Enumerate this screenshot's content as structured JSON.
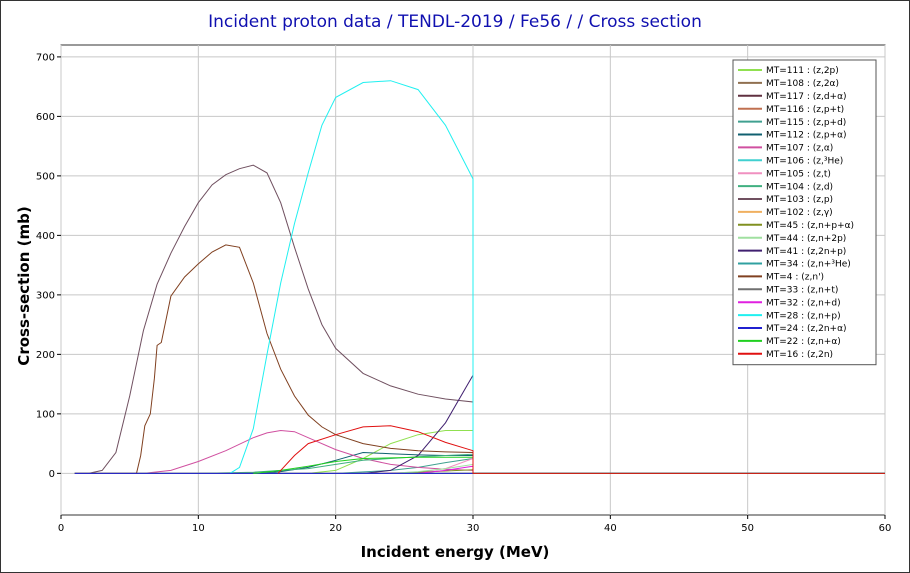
{
  "chart_data": {
    "type": "line",
    "title": "Incident proton data / TENDL-2019 / Fe56 / / Cross section",
    "xlabel": "Incident energy (MeV)",
    "ylabel": "Cross-section (mb)",
    "xlim": [
      0,
      60
    ],
    "ylim": [
      -70,
      720
    ],
    "xticks": [
      0,
      10,
      20,
      30,
      40,
      50,
      60
    ],
    "yticks": [
      0,
      100,
      200,
      300,
      400,
      500,
      600,
      700
    ],
    "grid": true,
    "legend_position": "top-right",
    "series": [
      {
        "name": "MT=111 : (z,2p)",
        "color": "#90e050",
        "x": [
          18,
          20,
          22,
          24,
          26,
          28,
          30,
          30,
          60
        ],
        "y": [
          0,
          5,
          25,
          50,
          65,
          72,
          72,
          0,
          0
        ]
      },
      {
        "name": "MT=108 : (z,2α)",
        "color": "#907050",
        "x": [
          1,
          30,
          30,
          60
        ],
        "y": [
          0,
          0,
          0,
          0
        ]
      },
      {
        "name": "MT=117 : (z,d+α)",
        "color": "#603040",
        "x": [
          1,
          30,
          30,
          60
        ],
        "y": [
          0,
          0,
          0,
          0
        ]
      },
      {
        "name": "MT=116 : (z,p+t)",
        "color": "#c07050",
        "x": [
          1,
          30,
          30,
          60
        ],
        "y": [
          0,
          0,
          0,
          0
        ]
      },
      {
        "name": "MT=115 : (z,p+d)",
        "color": "#40a090",
        "x": [
          20,
          24,
          26,
          28,
          30,
          30,
          60
        ],
        "y": [
          0,
          5,
          10,
          18,
          25,
          0,
          0
        ]
      },
      {
        "name": "MT=112 : (z,p+α)",
        "color": "#106070",
        "x": [
          14,
          16,
          18,
          20,
          22,
          24,
          26,
          28,
          30,
          30,
          60
        ],
        "y": [
          0,
          3,
          10,
          22,
          35,
          33,
          31,
          30,
          30,
          0,
          0
        ]
      },
      {
        "name": "MT=107 : (z,α)",
        "color": "#d050a0",
        "x": [
          1,
          6,
          8,
          10,
          12,
          14,
          15,
          16,
          17,
          18,
          20,
          22,
          24,
          26,
          28,
          30,
          30,
          60
        ],
        "y": [
          0,
          0,
          5,
          20,
          38,
          60,
          68,
          72,
          70,
          60,
          40,
          25,
          15,
          10,
          7,
          5,
          0,
          0
        ]
      },
      {
        "name": "MT=106 : (z,³He)",
        "color": "#40d0d0",
        "x": [
          1,
          30,
          30,
          60
        ],
        "y": [
          0,
          0,
          0,
          0
        ]
      },
      {
        "name": "MT=105 : (z,t)",
        "color": "#f090c0",
        "x": [
          22,
          26,
          28,
          30,
          30,
          60
        ],
        "y": [
          0,
          2,
          8,
          25,
          0,
          0
        ]
      },
      {
        "name": "MT=104 : (z,d)",
        "color": "#40b080",
        "x": [
          10,
          14,
          18,
          20,
          22,
          24,
          26,
          28,
          30,
          30,
          60
        ],
        "y": [
          0,
          2,
          8,
          15,
          22,
          25,
          28,
          30,
          32,
          0,
          0
        ]
      },
      {
        "name": "MT=103 : (z,p)",
        "color": "#705060",
        "x": [
          1,
          2,
          3,
          4,
          5,
          6,
          7,
          8,
          9,
          10,
          11,
          12,
          13,
          14,
          15,
          16,
          17,
          18,
          19,
          20,
          22,
          24,
          26,
          28,
          30,
          30,
          60
        ],
        "y": [
          0,
          0,
          5,
          35,
          130,
          240,
          318,
          370,
          415,
          455,
          485,
          502,
          512,
          518,
          505,
          455,
          380,
          310,
          250,
          210,
          168,
          147,
          133,
          125,
          120,
          0,
          0
        ]
      },
      {
        "name": "MT=102 : (z,γ)",
        "color": "#f0b060",
        "x": [
          1,
          30,
          30,
          60
        ],
        "y": [
          0,
          0,
          0,
          0
        ]
      },
      {
        "name": "MT=45 : (z,n+p+α)",
        "color": "#809020",
        "x": [
          24,
          26,
          28,
          30,
          30,
          60
        ],
        "y": [
          0,
          2,
          4,
          6,
          0,
          0
        ]
      },
      {
        "name": "MT=44 : (z,n+2p)",
        "color": "#a0e0a0",
        "x": [
          24,
          26,
          28,
          30,
          30,
          60
        ],
        "y": [
          0,
          3,
          8,
          15,
          0,
          0
        ]
      },
      {
        "name": "MT=41 : (z,2n+p)",
        "color": "#402070",
        "x": [
          22,
          24,
          26,
          28,
          30,
          30,
          60
        ],
        "y": [
          0,
          5,
          30,
          85,
          165,
          0,
          0
        ]
      },
      {
        "name": "MT=34 : (z,n+³He)",
        "color": "#30a0a0",
        "x": [
          1,
          30,
          30,
          60
        ],
        "y": [
          0,
          0,
          0,
          0
        ]
      },
      {
        "name": "MT=4 : (z,n')",
        "color": "#804020",
        "x": [
          1,
          5.5,
          5.8,
          6.1,
          6.5,
          6.8,
          7.0,
          7.3,
          8.0,
          9,
          10,
          11,
          12,
          13,
          14,
          15,
          16,
          17,
          18,
          19,
          20,
          22,
          24,
          26,
          28,
          30,
          30,
          60
        ],
        "y": [
          0,
          0,
          30,
          80,
          100,
          160,
          215,
          220,
          298,
          330,
          352,
          372,
          384,
          380,
          320,
          235,
          175,
          130,
          98,
          78,
          65,
          50,
          42,
          38,
          36,
          35,
          0,
          0
        ]
      },
      {
        "name": "MT=33 : (z,n+t)",
        "color": "#707070",
        "x": [
          1,
          30,
          30,
          60
        ],
        "y": [
          0,
          0,
          0,
          0
        ]
      },
      {
        "name": "MT=32 : (z,n+d)",
        "color": "#e020e0",
        "x": [
          26,
          28,
          30,
          30,
          60
        ],
        "y": [
          0,
          5,
          12,
          0,
          0
        ]
      },
      {
        "name": "MT=28 : (z,n+p)",
        "color": "#20f0f0",
        "x": [
          12.3,
          13,
          14,
          15,
          16,
          17,
          18,
          19,
          20,
          22,
          24,
          26,
          28,
          29,
          30,
          30,
          60
        ],
        "y": [
          0,
          10,
          75,
          200,
          320,
          420,
          505,
          585,
          632,
          657,
          660,
          645,
          585,
          540,
          495,
          0,
          0
        ]
      },
      {
        "name": "MT=24 : (z,2n+α)",
        "color": "#2020d0",
        "x": [
          1,
          30,
          30,
          60
        ],
        "y": [
          0,
          0,
          0,
          0
        ]
      },
      {
        "name": "MT=22 : (z,n+α)",
        "color": "#20d020",
        "x": [
          14,
          16,
          18,
          20,
          22,
          24,
          26,
          28,
          30,
          30,
          60
        ],
        "y": [
          0,
          5,
          12,
          20,
          25,
          26,
          27,
          27,
          27,
          0,
          0
        ]
      },
      {
        "name": "MT=16 : (z,2n)",
        "color": "#e01010",
        "x": [
          15.8,
          16,
          17,
          18,
          20,
          22,
          24,
          26,
          28,
          30,
          30,
          60
        ],
        "y": [
          0,
          5,
          30,
          50,
          65,
          78,
          80,
          70,
          52,
          38,
          0,
          0
        ]
      }
    ]
  }
}
